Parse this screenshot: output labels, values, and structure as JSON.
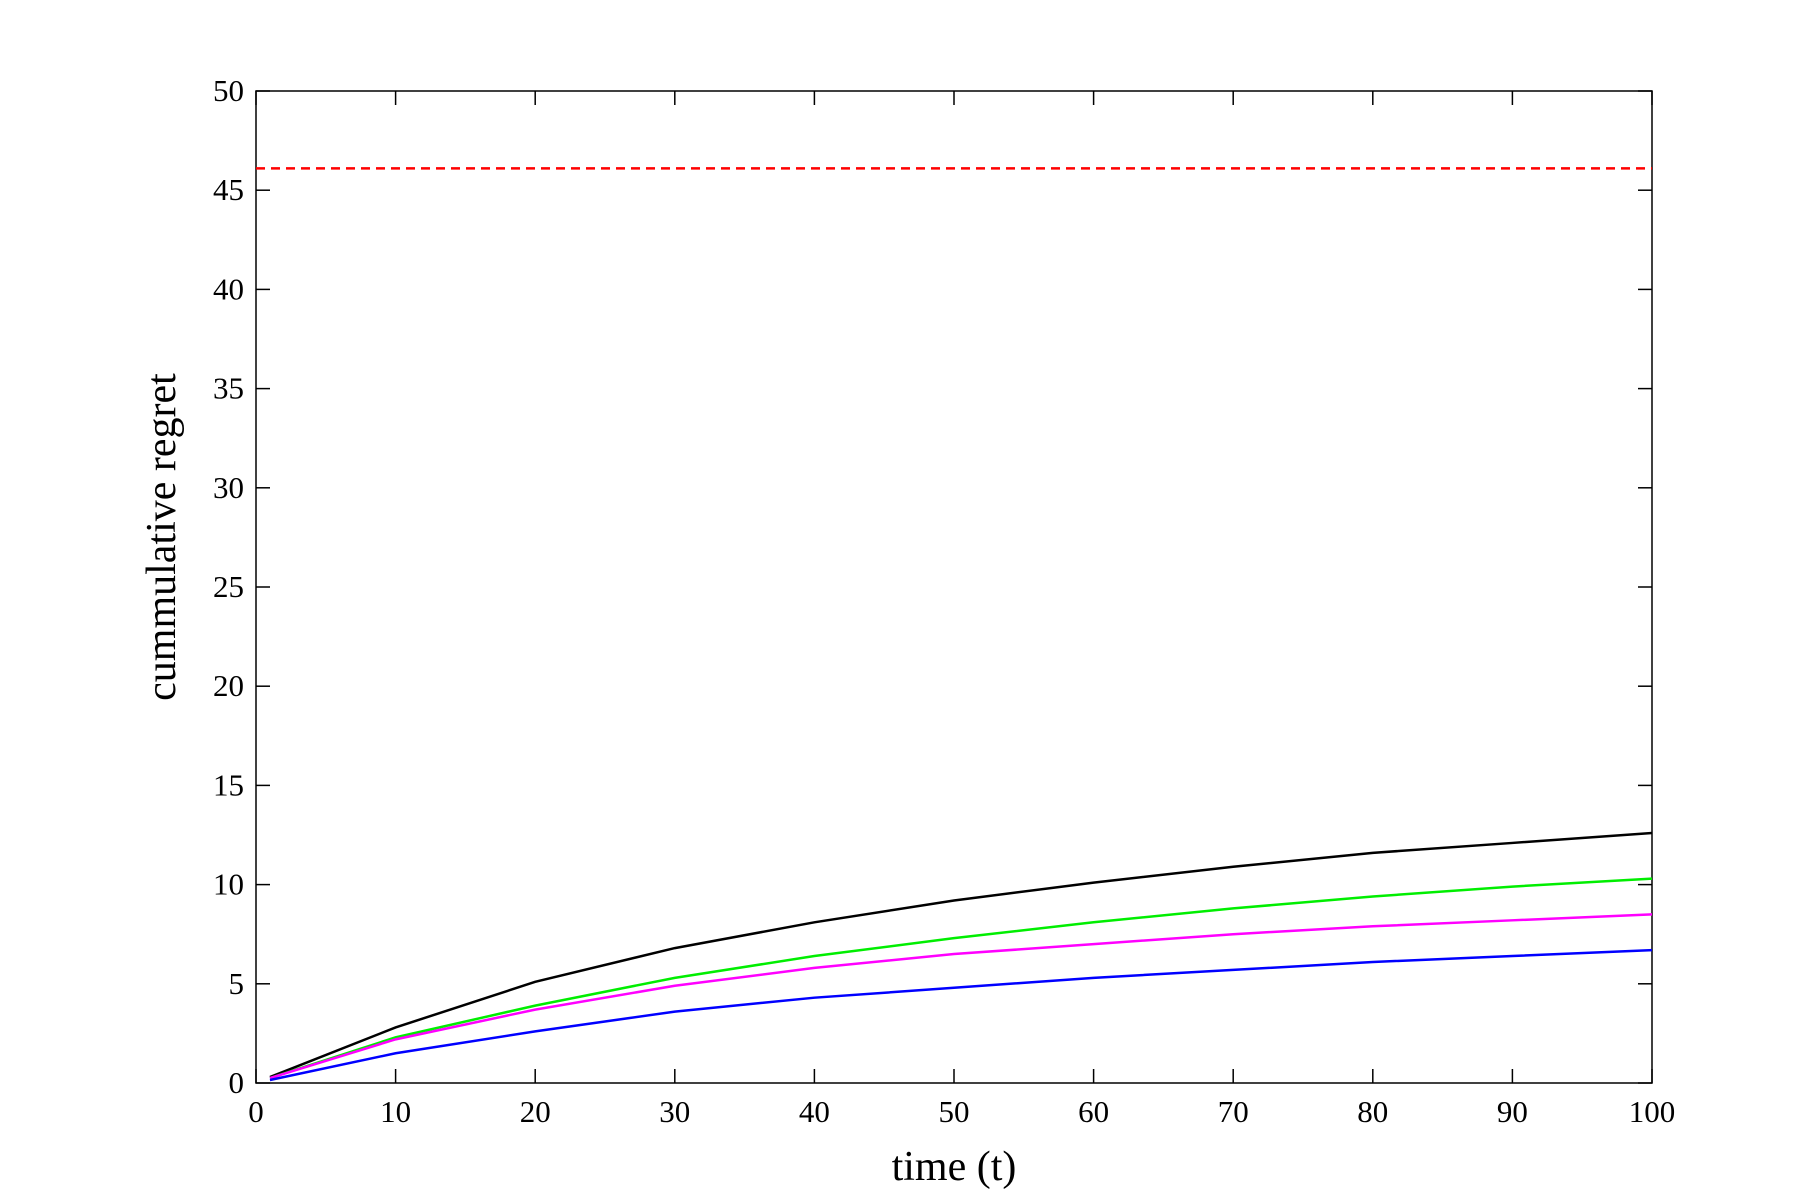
{
  "chart_data": {
    "type": "line",
    "xlabel": "time (t)",
    "ylabel": "cummulative regret",
    "xlim": [
      0,
      100
    ],
    "ylim": [
      0,
      50
    ],
    "xticks": [
      0,
      10,
      20,
      30,
      40,
      50,
      60,
      70,
      80,
      90,
      100
    ],
    "yticks": [
      0,
      5,
      10,
      15,
      20,
      25,
      30,
      35,
      40,
      45,
      50
    ],
    "series": [
      {
        "color": "#ff0000",
        "dash": true,
        "x": [
          0,
          100
        ],
        "values": [
          46.1,
          46.1
        ]
      },
      {
        "color": "#000000",
        "x": [
          1,
          10,
          20,
          30,
          40,
          50,
          60,
          70,
          80,
          90,
          100
        ],
        "values": [
          0.3,
          2.8,
          5.1,
          6.8,
          8.1,
          9.2,
          10.1,
          10.9,
          11.6,
          12.1,
          12.6
        ]
      },
      {
        "color": "#00ee00",
        "x": [
          1,
          10,
          20,
          30,
          40,
          50,
          60,
          70,
          80,
          90,
          100
        ],
        "values": [
          0.25,
          2.3,
          3.9,
          5.3,
          6.4,
          7.3,
          8.1,
          8.8,
          9.4,
          9.9,
          10.3
        ]
      },
      {
        "color": "#ff00ff",
        "x": [
          1,
          10,
          20,
          30,
          40,
          50,
          60,
          70,
          80,
          90,
          100
        ],
        "values": [
          0.25,
          2.2,
          3.7,
          4.9,
          5.8,
          6.5,
          7.0,
          7.5,
          7.9,
          8.2,
          8.5
        ]
      },
      {
        "color": "#0000ff",
        "x": [
          1,
          10,
          20,
          30,
          40,
          50,
          60,
          70,
          80,
          90,
          100
        ],
        "values": [
          0.15,
          1.5,
          2.6,
          3.6,
          4.3,
          4.8,
          5.3,
          5.7,
          6.1,
          6.4,
          6.7
        ]
      }
    ]
  }
}
